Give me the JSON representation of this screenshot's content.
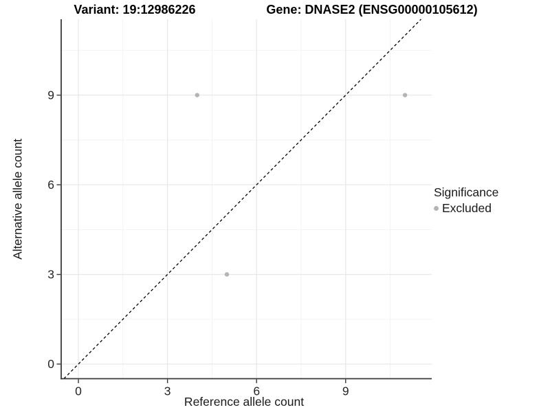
{
  "titles": {
    "variant": "Variant: 19:12986226",
    "gene": "Gene: DNASE2 (ENSG00000105612)"
  },
  "chart_data": {
    "type": "scatter",
    "title_left": "Variant: 19:12986226",
    "title_right": "Gene: DNASE2 (ENSG00000105612)",
    "xlabel": "Reference allele count",
    "ylabel": "Alternative allele count",
    "xlim": [
      -0.58,
      11.9
    ],
    "ylim": [
      -0.49,
      11.54
    ],
    "x_ticks": [
      0,
      3,
      6,
      9
    ],
    "y_ticks": [
      0,
      3,
      6,
      9
    ],
    "x_minor": [
      1.5,
      4.5,
      7.5,
      10.5
    ],
    "y_minor": [
      1.5,
      4.5,
      7.5,
      10.5
    ],
    "grid": "on",
    "identity_line": {
      "style": "dashed",
      "from": -0.49,
      "to": 11.54,
      "slope": 1,
      "intercept": 0
    },
    "series": [
      {
        "name": "Excluded",
        "color": "#b4b4b4",
        "points": [
          [
            4,
            9
          ],
          [
            11,
            9
          ],
          [
            5,
            3
          ]
        ]
      }
    ],
    "legend": {
      "position": "right",
      "title": "Significance",
      "entries": [
        {
          "label": "Excluded",
          "color": "#b4b4b4"
        }
      ]
    },
    "colors": {
      "grid_major": "#e7e7e7",
      "grid_minor": "#f0f0f0",
      "axis": "#383838",
      "text": "#262626",
      "line": "#000000",
      "background": "#ffffff"
    }
  }
}
